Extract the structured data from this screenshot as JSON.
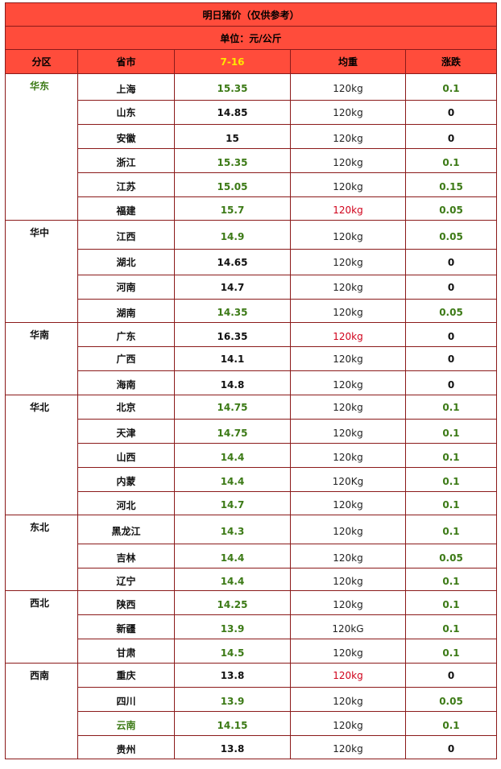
{
  "title": "明日猪价（仅供参考）",
  "unit": "单位：元/公斤",
  "headers": {
    "region": "分区",
    "province": "省市",
    "date": "7-16",
    "weight": "均重",
    "change": "涨跌"
  },
  "colors": {
    "header_bg": "#ff4c3b",
    "border": "#8b1a1a",
    "green": "#3c7a16",
    "red": "#d0021b",
    "date_yellow": "#ffe600"
  },
  "regions": [
    {
      "name": "华东",
      "rows": [
        {
          "province": "上海",
          "price": "15.35",
          "weight": "120kg",
          "change": "0.1"
        },
        {
          "province": "山东",
          "price": "14.85",
          "weight": "120kg",
          "change": "0"
        },
        {
          "province": "安徽",
          "price": "15",
          "weight": "120kg",
          "change": "0"
        },
        {
          "province": "浙江",
          "price": "15.35",
          "weight": "120kg",
          "change": "0.1"
        },
        {
          "province": "江苏",
          "price": "15.05",
          "weight": "120kg",
          "change": "0.15"
        },
        {
          "province": "福建",
          "price": "15.7",
          "weight": "120kg",
          "change": "0.05"
        }
      ]
    },
    {
      "name": "华中",
      "rows": [
        {
          "province": "江西",
          "price": "14.9",
          "weight": "120kg",
          "change": "0.05"
        },
        {
          "province": "湖北",
          "price": "14.65",
          "weight": "120kg",
          "change": "0"
        },
        {
          "province": "河南",
          "price": "14.7",
          "weight": "120kg",
          "change": "0"
        },
        {
          "province": "湖南",
          "price": "14.35",
          "weight": "120kg",
          "change": "0.05"
        }
      ]
    },
    {
      "name": "华南",
      "rows": [
        {
          "province": "广东",
          "price": "16.35",
          "weight": "120kg",
          "change": "0"
        },
        {
          "province": "广西",
          "price": "14.1",
          "weight": "120kg",
          "change": "0"
        },
        {
          "province": "海南",
          "price": "14.8",
          "weight": "120kg",
          "change": "0"
        }
      ]
    },
    {
      "name": "华北",
      "rows": [
        {
          "province": "北京",
          "price": "14.75",
          "weight": "120kg",
          "change": "0.1"
        },
        {
          "province": "天津",
          "price": "14.75",
          "weight": "120kg",
          "change": "0.1"
        },
        {
          "province": "山西",
          "price": "14.4",
          "weight": "120kg",
          "change": "0.1"
        },
        {
          "province": "内蒙",
          "price": "14.4",
          "weight": "120Kg",
          "change": "0.1"
        },
        {
          "province": "河北",
          "price": "14.7",
          "weight": "120kg",
          "change": "0.1"
        }
      ]
    },
    {
      "name": "东北",
      "rows": [
        {
          "province": "黑龙江",
          "price": "14.3",
          "weight": "120kg",
          "change": "0.1"
        },
        {
          "province": "吉林",
          "price": "14.4",
          "weight": "120kg",
          "change": "0.05"
        },
        {
          "province": "辽宁",
          "price": "14.4",
          "weight": "120kg",
          "change": "0.1"
        }
      ]
    },
    {
      "name": "西北",
      "rows": [
        {
          "province": "陕西",
          "price": "14.25",
          "weight": "120kg",
          "change": "0.1"
        },
        {
          "province": "新疆",
          "price": "13.9",
          "weight": "120kG",
          "change": "0.1"
        },
        {
          "province": "甘肃",
          "price": "14.5",
          "weight": "120kg",
          "change": "0.1"
        }
      ]
    },
    {
      "name": "西南",
      "rows": [
        {
          "province": "重庆",
          "price": "13.8",
          "weight": "120kg",
          "change": "0"
        },
        {
          "province": "四川",
          "price": "13.9",
          "weight": "120kg",
          "change": "0.05"
        },
        {
          "province": "云南",
          "price": "14.15",
          "weight": "120kg",
          "change": "0.1"
        },
        {
          "province": "贵州",
          "price": "13.8",
          "weight": "120kg",
          "change": "0"
        }
      ]
    }
  ]
}
